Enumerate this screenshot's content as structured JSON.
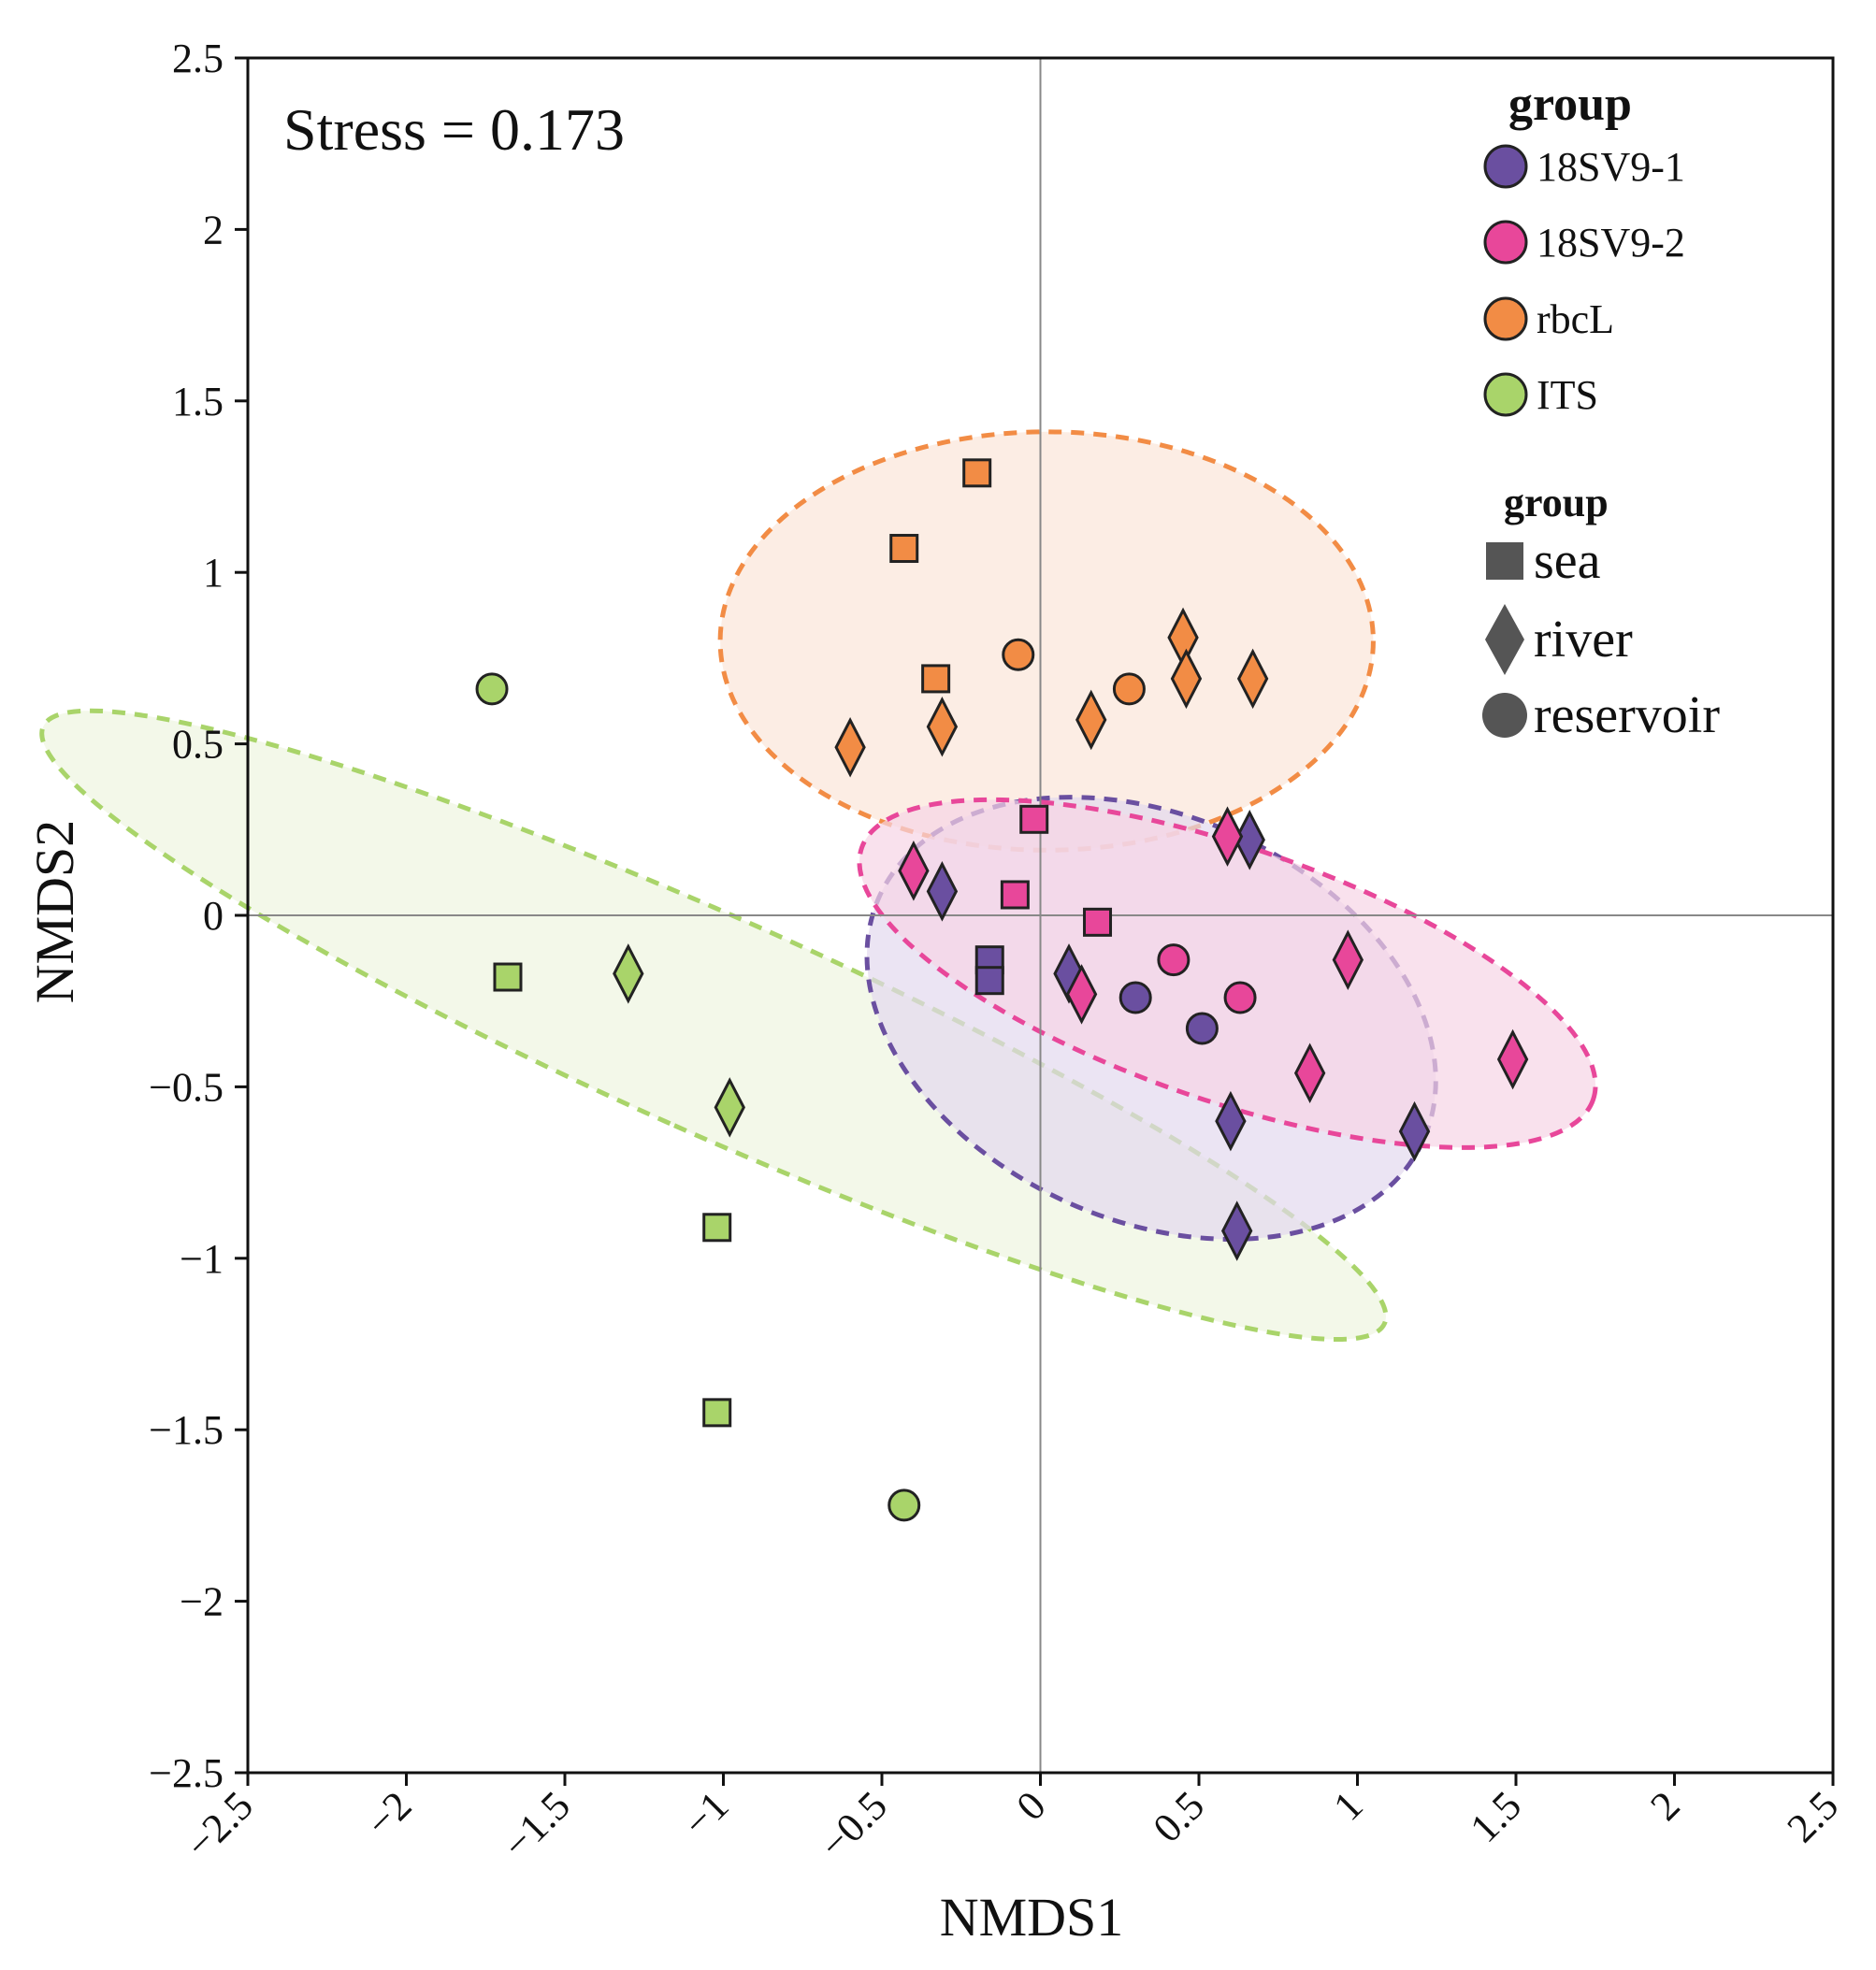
{
  "chart_data": {
    "type": "scatter",
    "title": "",
    "annotation": "Stress = 0.173",
    "xlabel": "NMDS1",
    "ylabel": "NMDS2",
    "xlim": [
      -2.5,
      2.5
    ],
    "ylim": [
      -2.5,
      2.5
    ],
    "xticks": [
      -2.5,
      -2,
      -1.5,
      -1,
      -0.5,
      0,
      0.5,
      1,
      1.5,
      2,
      2.5
    ],
    "yticks": [
      -2.5,
      -2,
      -1.5,
      -1,
      -0.5,
      0,
      0.5,
      1,
      1.5,
      2,
      2.5
    ],
    "xtick_labels": [
      "−2.5",
      "−2",
      "−1.5",
      "−1",
      "−0.5",
      "0",
      "0.5",
      "1",
      "1.5",
      "2",
      "2.5"
    ],
    "ytick_labels": [
      "−2.5",
      "−2",
      "−1.5",
      "−1",
      "−0.5",
      "0",
      "0.5",
      "1",
      "1.5",
      "2",
      "2.5"
    ],
    "zero_lines": true,
    "legend_position": "top-right",
    "legend_color": {
      "title": "group",
      "entries": [
        {
          "name": "18SV9-1",
          "color": "#6a4fa0"
        },
        {
          "name": "18SV9-2",
          "color": "#e8479a"
        },
        {
          "name": "rbcL",
          "color": "#f28c45"
        },
        {
          "name": "ITS",
          "color": "#a9d46a"
        }
      ]
    },
    "legend_shape": {
      "title": "group",
      "entries": [
        {
          "name": "sea",
          "shape": "square"
        },
        {
          "name": "river",
          "shape": "diamond"
        },
        {
          "name": "reservoir",
          "shape": "circle"
        }
      ]
    },
    "ellipses": [
      {
        "group": "ITS",
        "color": "#a9d46a",
        "fill": "#eef5e0",
        "center": [
          -1.03,
          -0.32
        ],
        "radii": [
          0.34,
          2.14
        ],
        "angle_deg": 114
      },
      {
        "group": "rbcL",
        "color": "#f28c45",
        "fill": "#fbe6d8",
        "center": [
          0.02,
          0.8
        ],
        "radii": [
          1.03,
          0.61
        ],
        "angle_deg": 0
      },
      {
        "group": "18SV9-1",
        "color": "#6a4fa0",
        "fill": "#e2d8ee",
        "center": [
          0.35,
          -0.3
        ],
        "radii": [
          0.94,
          0.59
        ],
        "angle_deg": 24
      },
      {
        "group": "18SV9-2",
        "color": "#e8479a",
        "fill": "#f6d4e5",
        "center": [
          0.59,
          -0.17
        ],
        "radii": [
          1.22,
          0.37
        ],
        "angle_deg": 19
      }
    ],
    "series": [
      {
        "name": "ITS",
        "color": "#a9d46a",
        "points": [
          {
            "x": -1.73,
            "y": 0.66,
            "habitat": "reservoir"
          },
          {
            "x": -0.43,
            "y": -1.72,
            "habitat": "reservoir"
          },
          {
            "x": -1.68,
            "y": -0.18,
            "habitat": "sea"
          },
          {
            "x": -1.02,
            "y": -0.91,
            "habitat": "sea"
          },
          {
            "x": -1.02,
            "y": -1.45,
            "habitat": "sea"
          },
          {
            "x": -1.3,
            "y": -0.17,
            "habitat": "river"
          },
          {
            "x": -0.98,
            "y": -0.56,
            "habitat": "river"
          }
        ]
      },
      {
        "name": "rbcL",
        "color": "#f28c45",
        "points": [
          {
            "x": -0.2,
            "y": 1.29,
            "habitat": "sea"
          },
          {
            "x": -0.43,
            "y": 1.07,
            "habitat": "sea"
          },
          {
            "x": -0.33,
            "y": 0.69,
            "habitat": "sea"
          },
          {
            "x": -0.07,
            "y": 0.76,
            "habitat": "reservoir"
          },
          {
            "x": 0.28,
            "y": 0.66,
            "habitat": "reservoir"
          },
          {
            "x": -0.6,
            "y": 0.49,
            "habitat": "river"
          },
          {
            "x": -0.31,
            "y": 0.55,
            "habitat": "river"
          },
          {
            "x": 0.16,
            "y": 0.57,
            "habitat": "river"
          },
          {
            "x": 0.45,
            "y": 0.81,
            "habitat": "river"
          },
          {
            "x": 0.46,
            "y": 0.69,
            "habitat": "river"
          },
          {
            "x": 0.67,
            "y": 0.69,
            "habitat": "river"
          }
        ]
      },
      {
        "name": "18SV9-1",
        "color": "#6a4fa0",
        "points": [
          {
            "x": -0.16,
            "y": -0.13,
            "habitat": "sea"
          },
          {
            "x": -0.16,
            "y": -0.19,
            "habitat": "sea"
          },
          {
            "x": 0.3,
            "y": -0.24,
            "habitat": "reservoir"
          },
          {
            "x": 0.51,
            "y": -0.33,
            "habitat": "reservoir"
          },
          {
            "x": -0.31,
            "y": 0.07,
            "habitat": "river"
          },
          {
            "x": 0.09,
            "y": -0.17,
            "habitat": "river"
          },
          {
            "x": 0.66,
            "y": 0.22,
            "habitat": "river"
          },
          {
            "x": 0.6,
            "y": -0.6,
            "habitat": "river"
          },
          {
            "x": 0.62,
            "y": -0.92,
            "habitat": "river"
          },
          {
            "x": 1.18,
            "y": -0.63,
            "habitat": "river"
          }
        ]
      },
      {
        "name": "18SV9-2",
        "color": "#e8479a",
        "points": [
          {
            "x": -0.02,
            "y": 0.28,
            "habitat": "sea"
          },
          {
            "x": -0.08,
            "y": 0.06,
            "habitat": "sea"
          },
          {
            "x": 0.18,
            "y": -0.02,
            "habitat": "sea"
          },
          {
            "x": 0.42,
            "y": -0.13,
            "habitat": "reservoir"
          },
          {
            "x": 0.63,
            "y": -0.24,
            "habitat": "reservoir"
          },
          {
            "x": -0.4,
            "y": 0.13,
            "habitat": "river"
          },
          {
            "x": 0.13,
            "y": -0.23,
            "habitat": "river"
          },
          {
            "x": 0.59,
            "y": 0.23,
            "habitat": "river"
          },
          {
            "x": 0.97,
            "y": -0.13,
            "habitat": "river"
          },
          {
            "x": 0.85,
            "y": -0.46,
            "habitat": "river"
          },
          {
            "x": 1.49,
            "y": -0.42,
            "habitat": "river"
          }
        ]
      }
    ]
  }
}
